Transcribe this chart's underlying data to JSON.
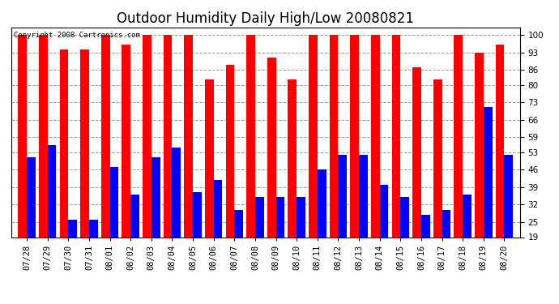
{
  "title": "Outdoor Humidity Daily High/Low 20080821",
  "copyright": "Copyright 2008 Cartronics.com",
  "categories": [
    "07/28",
    "07/29",
    "07/30",
    "07/31",
    "08/01",
    "08/02",
    "08/03",
    "08/04",
    "08/05",
    "08/06",
    "08/07",
    "08/08",
    "08/09",
    "08/10",
    "08/11",
    "08/12",
    "08/13",
    "08/14",
    "08/15",
    "08/16",
    "08/17",
    "08/18",
    "08/19",
    "08/20"
  ],
  "highs": [
    100,
    100,
    94,
    94,
    100,
    96,
    100,
    100,
    100,
    82,
    88,
    100,
    91,
    82,
    100,
    100,
    100,
    100,
    100,
    87,
    82,
    100,
    93,
    96
  ],
  "lows": [
    51,
    56,
    26,
    26,
    47,
    36,
    51,
    55,
    37,
    42,
    30,
    35,
    35,
    35,
    46,
    52,
    52,
    40,
    35,
    28,
    30,
    36,
    71,
    52
  ],
  "high_color": "#ff0000",
  "low_color": "#0000ff",
  "bg_color": "#ffffff",
  "plot_bg_color": "#ffffff",
  "grid_color": "#999999",
  "yticks": [
    19,
    25,
    32,
    39,
    46,
    53,
    59,
    66,
    73,
    80,
    86,
    93,
    100
  ],
  "ymin": 19,
  "ymax": 103,
  "bar_width": 0.42,
  "title_fontsize": 12,
  "tick_fontsize": 7.5,
  "copyright_fontsize": 6.5
}
